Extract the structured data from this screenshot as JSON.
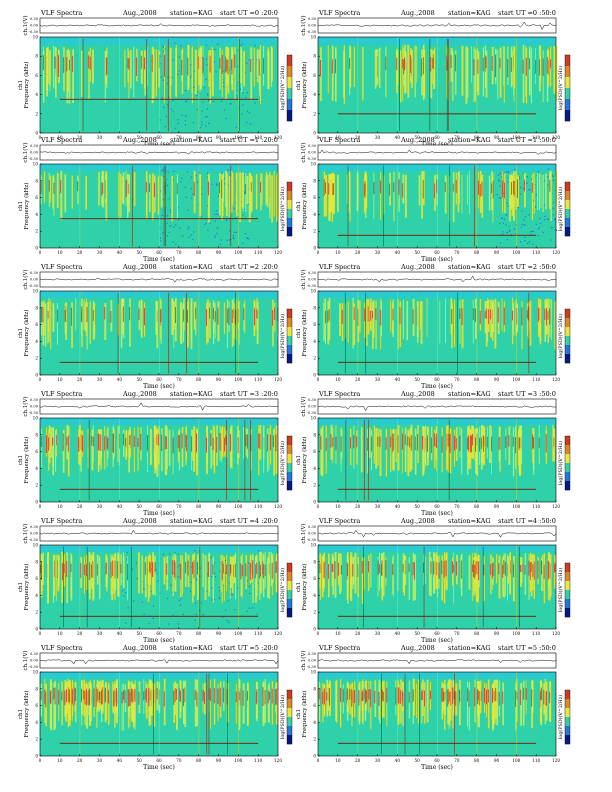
{
  "header": {
    "title": "VLF Spectra",
    "date": "Aug.,2008",
    "station": "station=KAG",
    "start_prefix": "start UT ="
  },
  "axis_labels": {
    "ch1_trace": "ch.1(V)",
    "frequency": "Frequency (kHz)",
    "channel": "ch1",
    "time": "Time (sec)",
    "colorbar": "log(PSD)(V^2/Hz)"
  },
  "colors": {
    "spectrogram_base": "#2fd1a8",
    "noise_blue": "#1e78e0",
    "band_yellow": "#e8e838",
    "band_red": "#d23a1e",
    "line_dark": "#702a14",
    "top_band": "#28c8e0"
  },
  "panels": [
    {
      "id": "p1",
      "start": "0 :20:0"
    },
    {
      "id": "p2",
      "start": "0 :50:0"
    },
    {
      "id": "p3",
      "start": "1 :20:0"
    },
    {
      "id": "p4",
      "start": "1 :50:0"
    },
    {
      "id": "p5",
      "start": "2 :20:0"
    },
    {
      "id": "p6",
      "start": "2 :50:0"
    },
    {
      "id": "p7",
      "start": "3 :20:0"
    },
    {
      "id": "p8",
      "start": "3 :50:0"
    },
    {
      "id": "p9",
      "start": "4 :20:0"
    },
    {
      "id": "p10",
      "start": "4 :50:0"
    },
    {
      "id": "p11",
      "start": "5 :20:0"
    },
    {
      "id": "p12",
      "start": "5 :50:0"
    }
  ],
  "chart_data": {
    "type": "heatmap",
    "x": {
      "label": "Time (sec)",
      "range": [
        0,
        120
      ],
      "ticks": [
        0,
        10,
        20,
        30,
        40,
        50,
        60,
        70,
        80,
        90,
        100,
        110,
        120
      ]
    },
    "y": {
      "label": "Frequency (kHz)",
      "range": [
        0,
        10
      ],
      "ticks": [
        0,
        2,
        4,
        6,
        8,
        10
      ]
    },
    "trace": {
      "label": "ch.1(V)",
      "ticks": [
        "0.30",
        "0.00",
        "-0.30"
      ]
    },
    "colorbar": {
      "label": "log(PSD)(V^2/Hz)",
      "colors": [
        "#001a8c",
        "#1e78e0",
        "#2fd1a8",
        "#e8e838",
        "#e08820",
        "#d23a1e"
      ]
    },
    "series": [
      {
        "start": "0 :20:0",
        "activity": 0.55,
        "quiet_region": [
          60,
          110
        ],
        "line_khz": 3.5
      },
      {
        "start": "0 :50:0",
        "activity": 0.5,
        "quiet_region": null,
        "line_khz": 2.0
      },
      {
        "start": "1 :20:0",
        "activity": 0.45,
        "quiet_region": [
          60,
          105
        ],
        "line_khz": 3.5
      },
      {
        "start": "1 :50:0",
        "activity": 0.5,
        "quiet_region": [
          90,
          120
        ],
        "line_khz": 1.5
      },
      {
        "start": "2 :20:0",
        "activity": 0.5,
        "quiet_region": null,
        "line_khz": 1.5
      },
      {
        "start": "2 :50:0",
        "activity": 0.5,
        "quiet_region": null,
        "line_khz": 1.5
      },
      {
        "start": "3 :20:0",
        "activity": 0.75,
        "quiet_region": null,
        "line_khz": 1.5
      },
      {
        "start": "3 :50:0",
        "activity": 0.75,
        "quiet_region": null,
        "line_khz": 1.5
      },
      {
        "start": "4 :20:0",
        "activity": 0.8,
        "quiet_region": [
          40,
          110
        ],
        "line_khz": 1.5
      },
      {
        "start": "4 :50:0",
        "activity": 0.8,
        "quiet_region": null,
        "line_khz": 1.5
      },
      {
        "start": "5 :20:0",
        "activity": 0.95,
        "quiet_region": null,
        "line_khz": 1.5
      },
      {
        "start": "5 :50:0",
        "activity": 0.95,
        "quiet_region": null,
        "line_khz": 1.5
      }
    ]
  }
}
